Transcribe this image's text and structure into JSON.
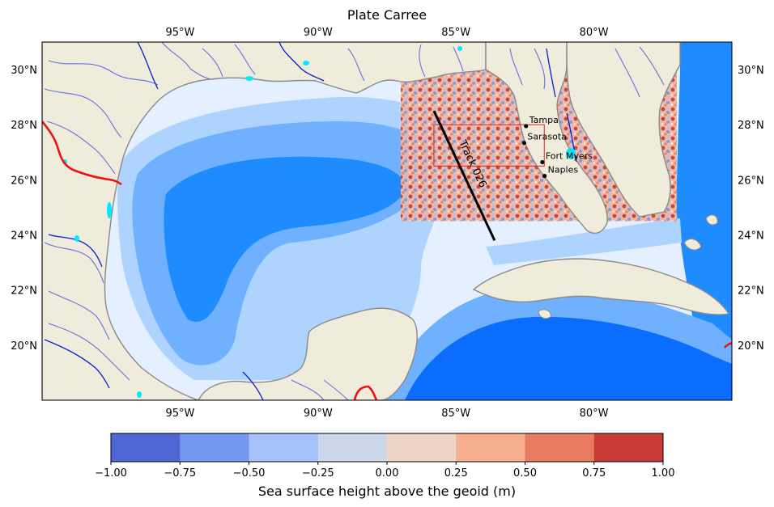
{
  "title": "Plate Carree",
  "projection": "Plate Carree",
  "extent": {
    "lon_min": -100,
    "lon_max": -75,
    "lat_min": 18,
    "lat_max": 31
  },
  "lon_ticks": [
    {
      "value": -95,
      "label": "95°W"
    },
    {
      "value": -90,
      "label": "90°W"
    },
    {
      "value": -85,
      "label": "85°W"
    },
    {
      "value": -80,
      "label": "80°W"
    }
  ],
  "lat_ticks": [
    {
      "value": 30,
      "label": "30°N"
    },
    {
      "value": 28,
      "label": "28°N"
    },
    {
      "value": 26,
      "label": "26°N"
    },
    {
      "value": 24,
      "label": "24°N"
    },
    {
      "value": 22,
      "label": "22°N"
    },
    {
      "value": 20,
      "label": "20°N"
    }
  ],
  "cities": [
    {
      "name": "Tampa",
      "lon": -82.46,
      "lat": 27.95
    },
    {
      "name": "Sarasota",
      "lon": -82.53,
      "lat": 27.34
    },
    {
      "name": "Fort Myers",
      "lon": -81.87,
      "lat": 26.64
    },
    {
      "name": "Naples",
      "lon": -81.79,
      "lat": 26.14
    }
  ],
  "track": {
    "label": "Track 026",
    "start": {
      "lon": -85.8,
      "lat": 28.5
    },
    "end": {
      "lon": -83.6,
      "lat": 23.8
    },
    "color": "#000000"
  },
  "inset_box": {
    "lon_min": -85.8,
    "lon_max": -81.8,
    "lat_min": 26.5,
    "lat_max": 28.0,
    "color": "#e02020"
  },
  "ssh_overlay": {
    "lon_min": -87.0,
    "lon_max": -77.0,
    "lat_min": 24.5,
    "lat_max": 30.5
  },
  "colorbar": {
    "label": "Sea surface height above the geoid (m)",
    "min": -1.0,
    "max": 1.0,
    "tick_labels": [
      "−1.00",
      "−0.75",
      "−0.50",
      "−0.25",
      "0.00",
      "0.25",
      "0.50",
      "0.75",
      "1.00"
    ],
    "colors": [
      "#4f66d6",
      "#7497ef",
      "#a6c1fb",
      "#cbd8ea",
      "#eed4c6",
      "#f5ae8e",
      "#e97b61",
      "#c93a35"
    ]
  },
  "colors": {
    "land": "#efecdc",
    "coast": "#8a8a8a",
    "rivers": "#6a6ee0",
    "major_rivers": "#0a1ed8",
    "lakes": "#00eaff",
    "border": "#ee1010",
    "ocean_deep": "#1e8cff",
    "ocean_mid": "#6fb1ff",
    "ocean_shallow": "#aed3ff",
    "ocean_shelf": "#e4f0ff",
    "ocean_abyss": "#0a6dff"
  }
}
